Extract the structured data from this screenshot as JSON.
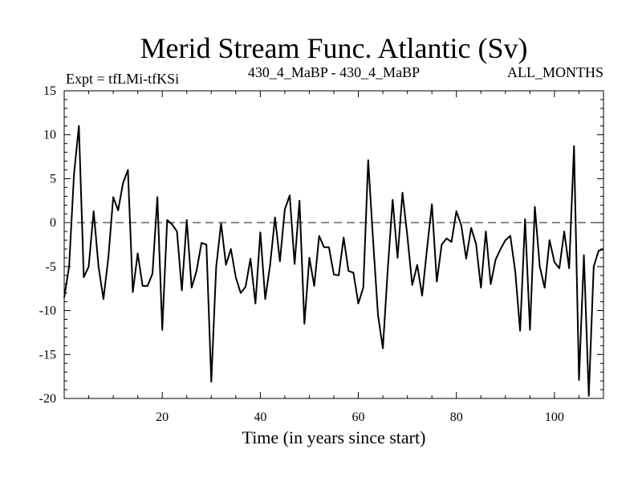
{
  "chart_data": {
    "type": "line",
    "title": "Merid Stream Func. Atlantic (Sv)",
    "subtitle_left": "Expt = tfLMi-tfKSi",
    "subtitle_center": "430_4_MaBP - 430_4_MaBP",
    "subtitle_right": "ALL_MONTHS",
    "xlabel": "Time (in years since start)",
    "ylabel": "",
    "xlim": [
      0,
      110
    ],
    "ylim": [
      -20,
      15
    ],
    "xticks": [
      20,
      40,
      60,
      80,
      100
    ],
    "yticks": [
      15,
      10,
      5,
      0,
      -5,
      -10,
      -15,
      -20
    ],
    "reference_line": 0,
    "grid": false,
    "series": [
      {
        "x": [
          0,
          1,
          2,
          3,
          4,
          5,
          6,
          7,
          8,
          9,
          10,
          11,
          12,
          13,
          14,
          15,
          16,
          17,
          18,
          19,
          20,
          21,
          22,
          23,
          24,
          25,
          26,
          27,
          28,
          29,
          30,
          31,
          32,
          33,
          34,
          35,
          36,
          37,
          38,
          39,
          40,
          41,
          42,
          43,
          44,
          45,
          46,
          47,
          48,
          49,
          50,
          51,
          52,
          53,
          54,
          55,
          56,
          57,
          58,
          59,
          60,
          61,
          62,
          63,
          64,
          65,
          66,
          67,
          68,
          69,
          70,
          71,
          72,
          73,
          74,
          75,
          76,
          77,
          78,
          79,
          80,
          81,
          82,
          83,
          84,
          85,
          86,
          87,
          88,
          89,
          90,
          91,
          92,
          93,
          94,
          95,
          96,
          97,
          98,
          99,
          100,
          101,
          102,
          103,
          104,
          105,
          106,
          107,
          108,
          109,
          110
        ],
        "values": [
          -8.5,
          -5,
          5.5,
          11,
          -6.2,
          -5,
          1.3,
          -5,
          -8.7,
          -4,
          2.9,
          1.4,
          4.5,
          6,
          -7.9,
          -3.5,
          -7.2,
          -7.2,
          -5.8,
          2.9,
          -12.2,
          0.3,
          -0.2,
          -1,
          -7.7,
          0.3,
          -7.4,
          -5.5,
          -2.3,
          -2.5,
          -18.1,
          -5,
          -0.1,
          -4.8,
          -3,
          -6.2,
          -8,
          -7.3,
          -4.1,
          -9.2,
          -1.1,
          -8.7,
          -4.8,
          0.6,
          -4.4,
          1.5,
          3.1,
          -4.7,
          2.5,
          -11.5,
          -4,
          -7.2,
          -1.5,
          -2.8,
          -2.8,
          -5.9,
          -6,
          -1.7,
          -5.5,
          -5.7,
          -9.2,
          -7.4,
          7.1,
          -2,
          -10.5,
          -14.3,
          -5.3,
          2.6,
          -4,
          3.4,
          -1.5,
          -7.1,
          -4.8,
          -8.3,
          -3,
          2.1,
          -6.7,
          -2.5,
          -1.8,
          -2.2,
          1.3,
          -0.3,
          -4.1,
          -0.6,
          -2.4,
          -7.4,
          -1,
          -7,
          -4.2,
          -3,
          -2,
          -1.5,
          -5.5,
          -12.3,
          0.4,
          -12.2,
          1.8,
          -5,
          -7.4,
          -2,
          -4.5,
          -5.2,
          -1,
          -5.2,
          8.7,
          -17.9,
          -3.7,
          -19.7,
          -5,
          -3.2,
          -3
        ]
      }
    ]
  }
}
